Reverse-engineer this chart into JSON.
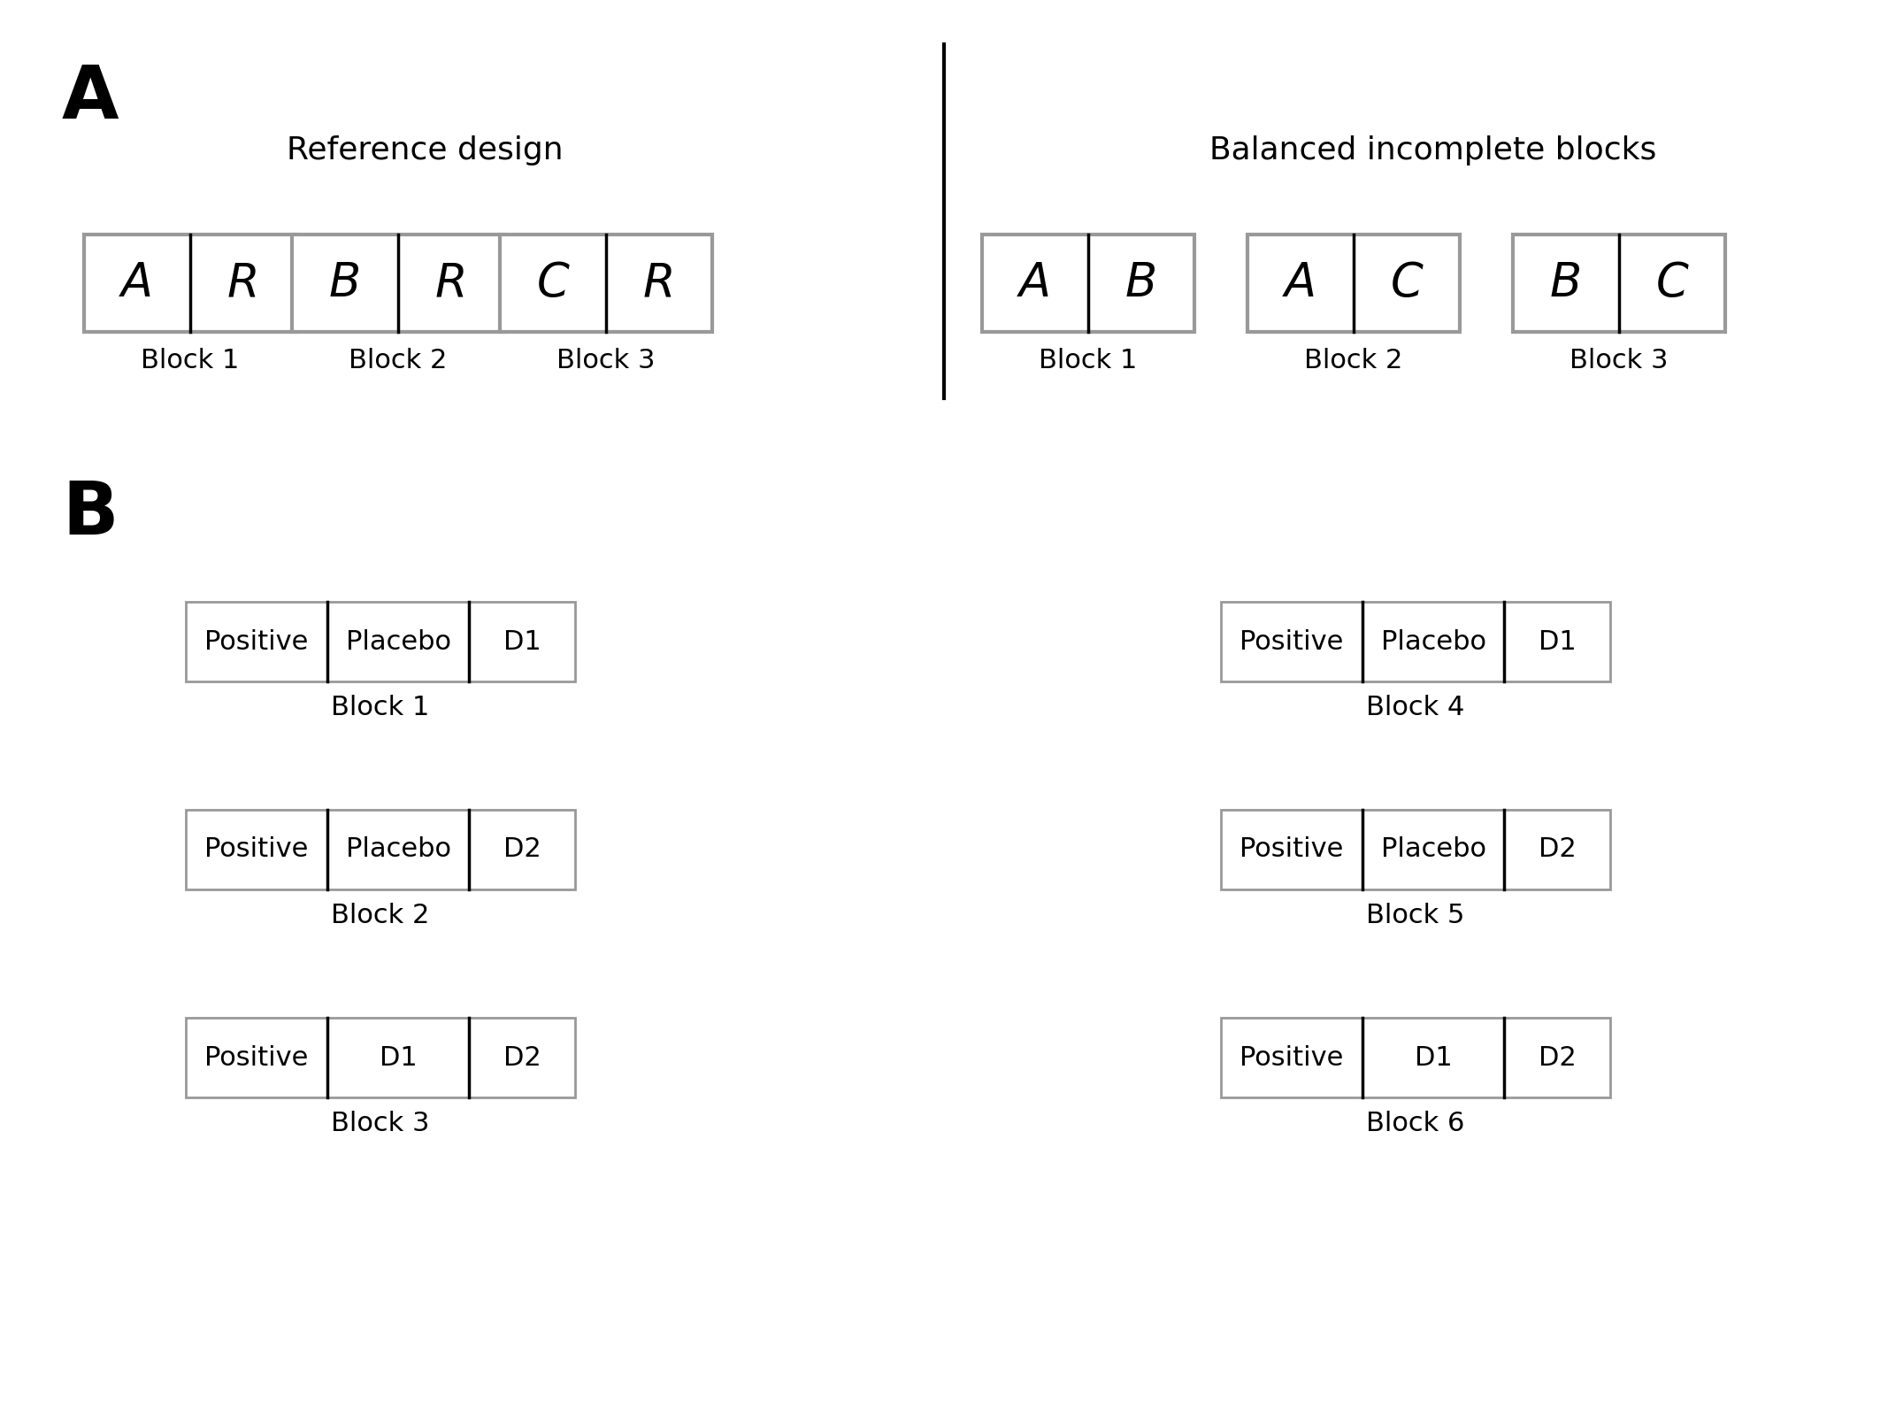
{
  "background_color": "#ffffff",
  "section_A_label": "A",
  "section_B_label": "B",
  "left_title": "Reference design",
  "right_title": "Balanced incomplete blocks",
  "ref_blocks": [
    {
      "cells": [
        "A",
        "R"
      ],
      "label": "Block 1"
    },
    {
      "cells": [
        "B",
        "R"
      ],
      "label": "Block 2"
    },
    {
      "cells": [
        "C",
        "R"
      ],
      "label": "Block 3"
    }
  ],
  "bibd_blocks": [
    {
      "cells": [
        "A",
        "B"
      ],
      "label": "Block 1"
    },
    {
      "cells": [
        "A",
        "C"
      ],
      "label": "Block 2"
    },
    {
      "cells": [
        "B",
        "C"
      ],
      "label": "Block 3"
    }
  ],
  "left_B_blocks": [
    {
      "cells": [
        "Positive",
        "Placebo",
        "D1"
      ],
      "label": "Block 1"
    },
    {
      "cells": [
        "Positive",
        "Placebo",
        "D2"
      ],
      "label": "Block 2"
    },
    {
      "cells": [
        "Positive",
        "D1",
        "D2"
      ],
      "label": "Block 3"
    }
  ],
  "right_B_blocks": [
    {
      "cells": [
        "Positive",
        "Placebo",
        "D1"
      ],
      "label": "Block 4"
    },
    {
      "cells": [
        "Positive",
        "Placebo",
        "D2"
      ],
      "label": "Block 5"
    },
    {
      "cells": [
        "Positive",
        "D1",
        "D2"
      ],
      "label": "Block 6"
    }
  ],
  "box_edge_color": "#999999",
  "divider_color": "#000000",
  "text_color": "#000000"
}
